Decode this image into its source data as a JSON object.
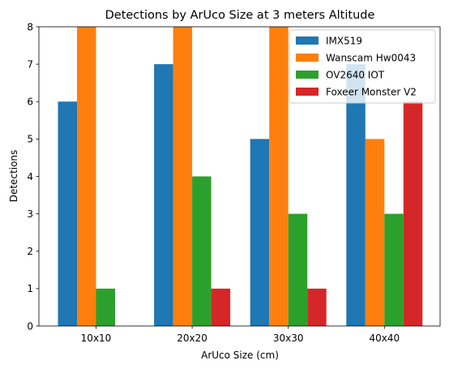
{
  "chart_data": {
    "type": "bar",
    "title": "Detections by ArUco Size at 3 meters Altitude",
    "xlabel": "ArUco Size (cm)",
    "ylabel": "Detections",
    "categories": [
      "10x10",
      "20x20",
      "30x30",
      "40x40"
    ],
    "ylim": [
      0,
      8
    ],
    "yticks": [
      0,
      1,
      2,
      3,
      4,
      5,
      6,
      7,
      8
    ],
    "grid": false,
    "legend_position": "top-right",
    "series": [
      {
        "name": "IMX519",
        "color": "#1f77b4",
        "values": [
          6,
          7,
          5,
          7
        ]
      },
      {
        "name": "Wanscam Hw0043",
        "color": "#ff7f0e",
        "values": [
          8,
          8,
          8,
          5
        ]
      },
      {
        "name": "OV2640 IOT",
        "color": "#2ca02c",
        "values": [
          1,
          4,
          3,
          3
        ]
      },
      {
        "name": "Foxeer Monster V2",
        "color": "#d62728",
        "values": [
          0,
          1,
          1,
          6
        ]
      }
    ]
  }
}
